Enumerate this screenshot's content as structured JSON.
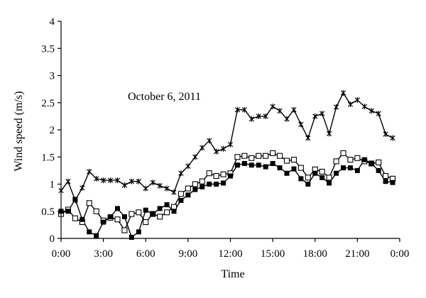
{
  "chart_data": {
    "type": "line",
    "title": "",
    "annotation": "October 6, 2011",
    "xlabel": "Time",
    "ylabel": "Wind speed (m/s)",
    "xlim": [
      0,
      24
    ],
    "ylim": [
      0,
      4
    ],
    "x_ticks": [
      {
        "value": 0,
        "label": "0:00"
      },
      {
        "value": 3,
        "label": "3:00"
      },
      {
        "value": 6,
        "label": "6:00"
      },
      {
        "value": 9,
        "label": "9:00"
      },
      {
        "value": 12,
        "label": "12:00"
      },
      {
        "value": 15,
        "label": "15:00"
      },
      {
        "value": 18,
        "label": "18:00"
      },
      {
        "value": 21,
        "label": "21:00"
      },
      {
        "value": 24,
        "label": "0:00"
      }
    ],
    "y_ticks": [
      {
        "value": 0,
        "label": "0"
      },
      {
        "value": 0.5,
        "label": "0.5"
      },
      {
        "value": 1,
        "label": "1"
      },
      {
        "value": 1.5,
        "label": "1.5"
      },
      {
        "value": 2,
        "label": "2"
      },
      {
        "value": 2.5,
        "label": "2.5"
      },
      {
        "value": 3,
        "label": "3"
      },
      {
        "value": 3.5,
        "label": "3.5"
      },
      {
        "value": 4,
        "label": "4"
      }
    ],
    "grid": false,
    "series": [
      {
        "marker": "star",
        "color": "#000000",
        "x": [
          0,
          0.5,
          1,
          1.5,
          2,
          2.5,
          3,
          3.5,
          4,
          4.5,
          5,
          5.5,
          6,
          6.5,
          7,
          7.5,
          8,
          8.5,
          9,
          9.5,
          10,
          10.5,
          11,
          11.5,
          12,
          12.5,
          13,
          13.5,
          14,
          14.5,
          15,
          15.5,
          16,
          16.5,
          17,
          17.5,
          18,
          18.5,
          19,
          19.5,
          20,
          20.5,
          21,
          21.5,
          22,
          22.5,
          23,
          23.5
        ],
        "values": [
          0.88,
          1.05,
          0.7,
          0.93,
          1.23,
          1.1,
          1.07,
          1.07,
          1.07,
          0.98,
          1.05,
          1.05,
          0.92,
          1.03,
          0.97,
          0.92,
          0.85,
          1.2,
          1.33,
          1.5,
          1.67,
          1.8,
          1.6,
          1.65,
          1.73,
          2.37,
          2.37,
          2.2,
          2.25,
          2.25,
          2.43,
          2.35,
          2.2,
          2.37,
          2.1,
          1.85,
          2.25,
          2.3,
          1.93,
          2.42,
          2.68,
          2.47,
          2.55,
          2.43,
          2.35,
          2.3,
          1.92,
          1.85
        ]
      },
      {
        "marker": "open-square",
        "color": "#000000",
        "x": [
          0,
          0.5,
          1,
          1.5,
          2,
          2.5,
          3,
          3.5,
          4,
          4.5,
          5,
          5.5,
          6,
          6.5,
          7,
          7.5,
          8,
          8.5,
          9,
          9.5,
          10,
          10.5,
          11,
          11.5,
          12,
          12.5,
          13,
          13.5,
          14,
          14.5,
          15,
          15.5,
          16,
          16.5,
          17,
          17.5,
          18,
          18.5,
          19,
          19.5,
          20,
          20.5,
          21,
          21.5,
          22,
          22.5,
          23,
          23.5
        ],
        "values": [
          0.45,
          0.53,
          0.37,
          0.3,
          0.65,
          0.5,
          0.33,
          0.38,
          0.35,
          0.15,
          0.45,
          0.48,
          0.3,
          0.45,
          0.4,
          0.48,
          0.58,
          0.82,
          0.92,
          1.0,
          1.05,
          1.2,
          1.15,
          1.18,
          1.2,
          1.5,
          1.52,
          1.48,
          1.52,
          1.52,
          1.57,
          1.52,
          1.43,
          1.45,
          1.3,
          1.12,
          1.27,
          1.23,
          1.12,
          1.42,
          1.57,
          1.45,
          1.48,
          1.42,
          1.38,
          1.4,
          1.15,
          1.1
        ]
      },
      {
        "marker": "filled-square",
        "color": "#000000",
        "x": [
          0,
          0.5,
          1,
          1.5,
          2,
          2.5,
          3,
          3.5,
          4,
          4.5,
          5,
          5.5,
          6,
          6.5,
          7,
          7.5,
          8,
          8.5,
          9,
          9.5,
          10,
          10.5,
          11,
          11.5,
          12,
          12.5,
          13,
          13.5,
          14,
          14.5,
          15,
          15.5,
          16,
          16.5,
          17,
          17.5,
          18,
          18.5,
          19,
          19.5,
          20,
          20.5,
          21,
          21.5,
          22,
          22.5,
          23,
          23.5
        ],
        "values": [
          0.5,
          0.5,
          0.72,
          0.35,
          0.12,
          0.05,
          0.3,
          0.4,
          0.55,
          0.4,
          0.02,
          0.12,
          0.52,
          0.45,
          0.55,
          0.62,
          0.5,
          0.7,
          0.8,
          0.9,
          0.95,
          1.0,
          1.0,
          1.02,
          1.15,
          1.35,
          1.38,
          1.35,
          1.35,
          1.32,
          1.38,
          1.3,
          1.2,
          1.28,
          1.1,
          1.0,
          1.2,
          1.12,
          1.02,
          1.2,
          1.3,
          1.3,
          1.25,
          1.45,
          1.38,
          1.25,
          1.05,
          1.03
        ]
      }
    ]
  }
}
